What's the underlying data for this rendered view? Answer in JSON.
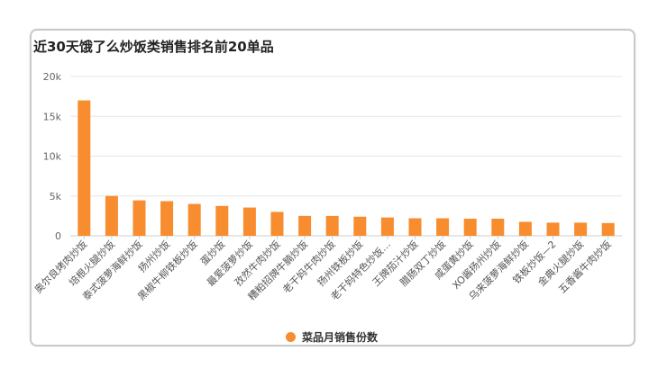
{
  "title": "近30天饿了么炒饭类销售排名前20单品",
  "colors": {
    "bar": "#F88D2F",
    "grid": "#e6e6e6",
    "axis": "#cccccc",
    "tick": "#666666"
  },
  "legend": {
    "label": "菜品月销售份数"
  },
  "chart_data": {
    "type": "bar",
    "title": "近30天饿了么炒饭类销售排名前20单品",
    "categories": [
      "奥尔良烤肉炒饭",
      "培根火腿炒饭",
      "泰式菠萝海鲜炒饭",
      "扬州炒饭",
      "黑椒牛柳铁板炒饭",
      "蛋炒饭",
      "最爱菠萝炒饭",
      "孜然牛肉炒饭",
      "糟粕招牌牛腩炒饭",
      "老干妈牛肉炒饭",
      "扬州铁板炒饭",
      "老干妈特色炒饭…",
      "王牌茄汁炒饭",
      "腊肠双丁炒饭",
      "咸蛋黄炒饭",
      "XO酱扬州炒饭",
      "乌来菠萝海鲜炒饭",
      "铁板炒饭—2",
      "金典火腿炒饭",
      "五香酱牛肉炒饭"
    ],
    "series": [
      {
        "name": "菜品月销售份数",
        "values": [
          17000,
          5000,
          4450,
          4350,
          4000,
          3750,
          3550,
          3000,
          2500,
          2500,
          2400,
          2300,
          2200,
          2200,
          2150,
          2150,
          1750,
          1650,
          1650,
          1600
        ]
      }
    ],
    "y_ticks": [
      "0",
      "5k",
      "10k",
      "15k",
      "20k"
    ],
    "ylim": [
      0,
      20000
    ],
    "grid": true,
    "legend_position": "bottom"
  }
}
